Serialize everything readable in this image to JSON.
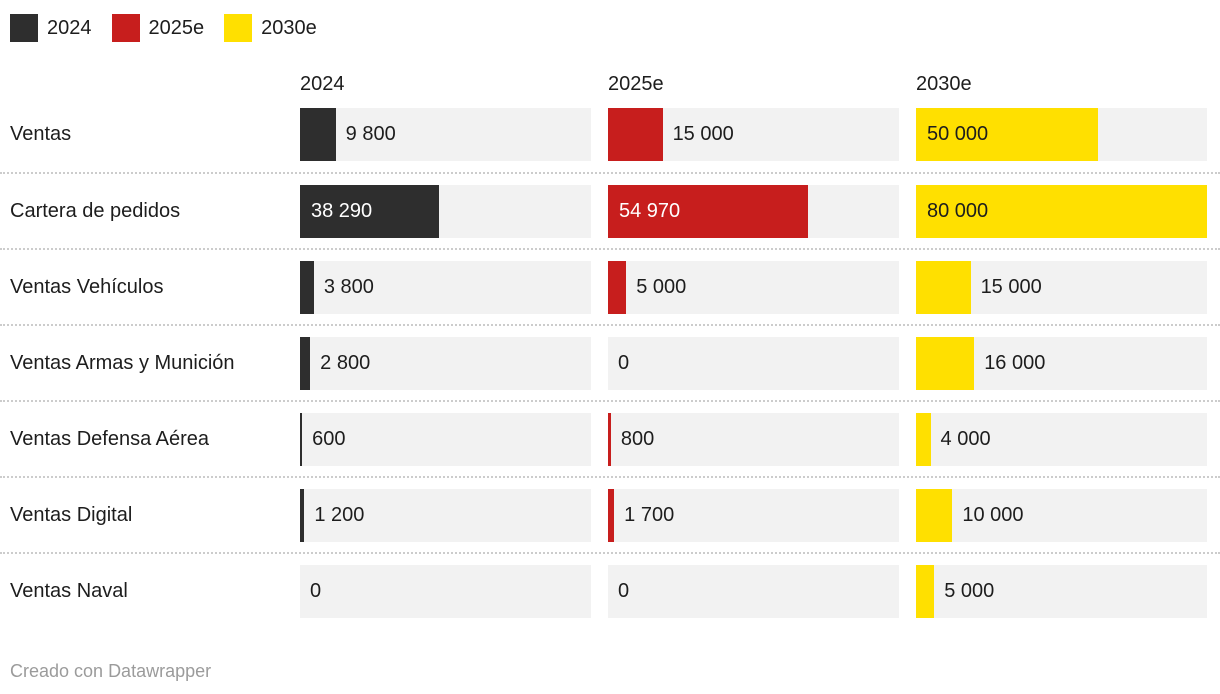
{
  "legend": {
    "items": [
      {
        "label": "2024",
        "color": "#2e2e2e",
        "inside_label_color": "#ffffff"
      },
      {
        "label": "2025e",
        "color": "#c71e1d",
        "inside_label_color": "#ffffff"
      },
      {
        "label": "2030e",
        "color": "#ffe000",
        "inside_label_color": "#1d1d1d"
      }
    ]
  },
  "columns": [
    "2024",
    "2025e",
    "2030e"
  ],
  "chart_data": {
    "type": "bar",
    "orientation": "horizontal",
    "title": "",
    "categories": [
      "Ventas",
      "Cartera de pedidos",
      "Ventas Vehículos",
      "Ventas Armas y Munición",
      "Ventas Defensa Aérea",
      "Ventas Digital",
      "Ventas Naval"
    ],
    "series": [
      {
        "name": "2024",
        "color": "#2e2e2e",
        "inside_label_color": "#ffffff",
        "values": [
          9800,
          38290,
          3800,
          2800,
          600,
          1200,
          0
        ],
        "labels": [
          "9 800",
          "38 290",
          "3 800",
          "2 800",
          "600",
          "1 200",
          "0"
        ]
      },
      {
        "name": "2025e",
        "color": "#c71e1d",
        "inside_label_color": "#ffffff",
        "values": [
          15000,
          54970,
          5000,
          0,
          800,
          1700,
          0
        ],
        "labels": [
          "15 000",
          "54 970",
          "5 000",
          "0",
          "800",
          "1 700",
          "0"
        ]
      },
      {
        "name": "2030e",
        "color": "#ffe000",
        "inside_label_color": "#1d1d1d",
        "values": [
          50000,
          80000,
          15000,
          16000,
          4000,
          10000,
          5000
        ],
        "labels": [
          "50 000",
          "80 000",
          "15 000",
          "16 000",
          "4 000",
          "10 000",
          "5 000"
        ]
      }
    ],
    "xmax": 80000,
    "track_color": "#f2f2f2",
    "outside_label_color": "#1d1d1d",
    "legend_position": "top-left",
    "grid": false
  },
  "footer": {
    "prefix": "Creado con ",
    "link_label": "Datawrapper"
  }
}
